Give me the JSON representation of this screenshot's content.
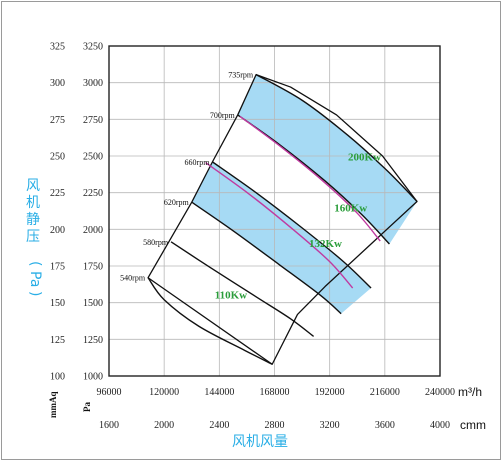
{
  "chart_data": {
    "type": "line",
    "xlabel": "风机风量",
    "ylabel_parts": [
      "风机静压",
      "(",
      "Pa",
      ")"
    ],
    "x_unit_top": "m³/h",
    "x_unit_bottom": "cmm",
    "y_unit_left_a": "mmAq",
    "y_unit_left_b": "Pa",
    "xlim": [
      96000,
      240000
    ],
    "ylim_pa": [
      1000,
      3250
    ],
    "x_ticks_m3h": [
      "96000",
      "120000",
      "144000",
      "168000",
      "192000",
      "216000",
      "240000"
    ],
    "x_ticks_cmm": [
      "1600",
      "2000",
      "2400",
      "2800",
      "3200",
      "3600",
      "4000"
    ],
    "y_ticks_pa": [
      "1000",
      "1250",
      "1500",
      "1750",
      "2000",
      "2250",
      "2500",
      "2750",
      "3000",
      "3250"
    ],
    "y_ticks_mmaq": [
      "100",
      "125",
      "150",
      "175",
      "200",
      "225",
      "250",
      "275",
      "300",
      "325"
    ],
    "grid": true,
    "bands": [
      {
        "lower": "700rpm",
        "upper": "735rpm",
        "fill": "#a6daf4"
      },
      {
        "lower": "620rpm",
        "upper": "660rpm",
        "fill": "#a6daf4"
      }
    ],
    "series": [
      {
        "name": "540rpm",
        "color": "#111111",
        "points": [
          [
            113000,
            1670
          ],
          [
            120000,
            1520
          ],
          [
            135000,
            1340
          ],
          [
            155000,
            1175
          ],
          [
            167000,
            1080
          ]
        ]
      },
      {
        "name": "580rpm",
        "color": "#111111",
        "points": [
          [
            123000,
            1915
          ],
          [
            140000,
            1740
          ],
          [
            160000,
            1540
          ],
          [
            175000,
            1390
          ],
          [
            185000,
            1270
          ]
        ]
      },
      {
        "name": "620rpm",
        "color": "#111111",
        "points": [
          [
            132000,
            2185
          ],
          [
            150000,
            1990
          ],
          [
            170000,
            1760
          ],
          [
            188000,
            1550
          ],
          [
            197000,
            1425
          ]
        ]
      },
      {
        "name": "660rpm",
        "color": "#111111",
        "points": [
          [
            141000,
            2460
          ],
          [
            160000,
            2250
          ],
          [
            180000,
            2010
          ],
          [
            198000,
            1780
          ],
          [
            210000,
            1600
          ]
        ]
      },
      {
        "name": "700rpm",
        "color": "#111111",
        "points": [
          [
            152000,
            2780
          ],
          [
            170000,
            2580
          ],
          [
            190000,
            2330
          ],
          [
            206000,
            2100
          ],
          [
            218000,
            1900
          ]
        ]
      },
      {
        "name": "735rpm",
        "color": "#111111",
        "points": [
          [
            160000,
            3055
          ],
          [
            180000,
            2880
          ],
          [
            200000,
            2640
          ],
          [
            217000,
            2400
          ],
          [
            230000,
            2190
          ]
        ]
      },
      {
        "name": "110Kw boundary",
        "color": "#c03aa0",
        "points": [
          [
            138000,
            2455
          ],
          [
            157000,
            2240
          ],
          [
            176000,
            2000
          ],
          [
            192000,
            1780
          ],
          [
            202000,
            1600
          ]
        ]
      },
      {
        "name": "132Kw boundary",
        "color": "#c03aa0",
        "points": [
          [
            153000,
            2770
          ],
          [
            171000,
            2560
          ],
          [
            189000,
            2330
          ],
          [
            204000,
            2110
          ],
          [
            214000,
            1920
          ]
        ]
      }
    ],
    "rpm_labels": [
      "540rpm",
      "580rpm",
      "620rpm",
      "660rpm",
      "700rpm",
      "735rpm"
    ],
    "power_labels": [
      {
        "text": "110Kw",
        "x": 142000,
        "y": 1530
      },
      {
        "text": "132Kw",
        "x": 183000,
        "y": 1880
      },
      {
        "text": "160Kw",
        "x": 194000,
        "y": 2120
      },
      {
        "text": "200Kw",
        "x": 200000,
        "y": 2470
      }
    ],
    "envelope": [
      [
        113000,
        1670
      ],
      [
        132000,
        2185
      ],
      [
        141000,
        2460
      ],
      [
        152000,
        2780
      ],
      [
        160000,
        3055
      ],
      [
        175000,
        2970
      ],
      [
        195000,
        2780
      ],
      [
        215000,
        2500
      ],
      [
        230000,
        2190
      ],
      [
        210000,
        1900
      ],
      [
        190000,
        1610
      ],
      [
        178000,
        1420
      ],
      [
        167000,
        1080
      ]
    ]
  }
}
